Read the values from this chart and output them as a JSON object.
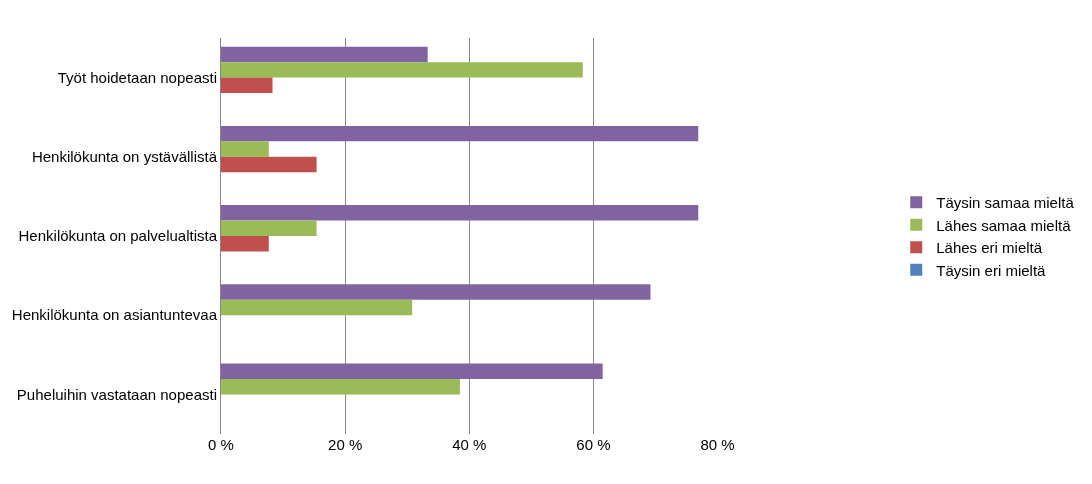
{
  "chart_data": {
    "type": "bar",
    "orientation": "horizontal",
    "categories": [
      "Työt hoidetaan nopeasti",
      "Henkilökunta on ystävällistä",
      "Henkilökunta on palvelualtista",
      "Henkilökunta on asiantuntevaa",
      "Puheluihin vastataan nopeasti"
    ],
    "series": [
      {
        "name": "Täysin samaa mieltä",
        "color": "#8064a2",
        "values": [
          33.3,
          76.9,
          76.9,
          69.2,
          61.5
        ]
      },
      {
        "name": "Lähes samaa mieltä",
        "color": "#9bbb59",
        "values": [
          58.3,
          7.7,
          15.4,
          30.8,
          38.5
        ]
      },
      {
        "name": "Lähes eri mieltä",
        "color": "#c0504d",
        "values": [
          8.3,
          15.4,
          7.7,
          0,
          0
        ]
      },
      {
        "name": "Täysin eri mieltä",
        "color": "#4f81bd",
        "values": [
          0,
          0,
          0,
          0,
          0
        ]
      }
    ],
    "xlim": [
      0,
      80
    ],
    "xticks": [
      {
        "value": 0,
        "label": "0 %"
      },
      {
        "value": 20,
        "label": "20 %"
      },
      {
        "value": 40,
        "label": "40 %"
      },
      {
        "value": 60,
        "label": "60 %"
      },
      {
        "value": 80,
        "label": "80 %"
      }
    ],
    "grid": "x",
    "legend": "right"
  }
}
